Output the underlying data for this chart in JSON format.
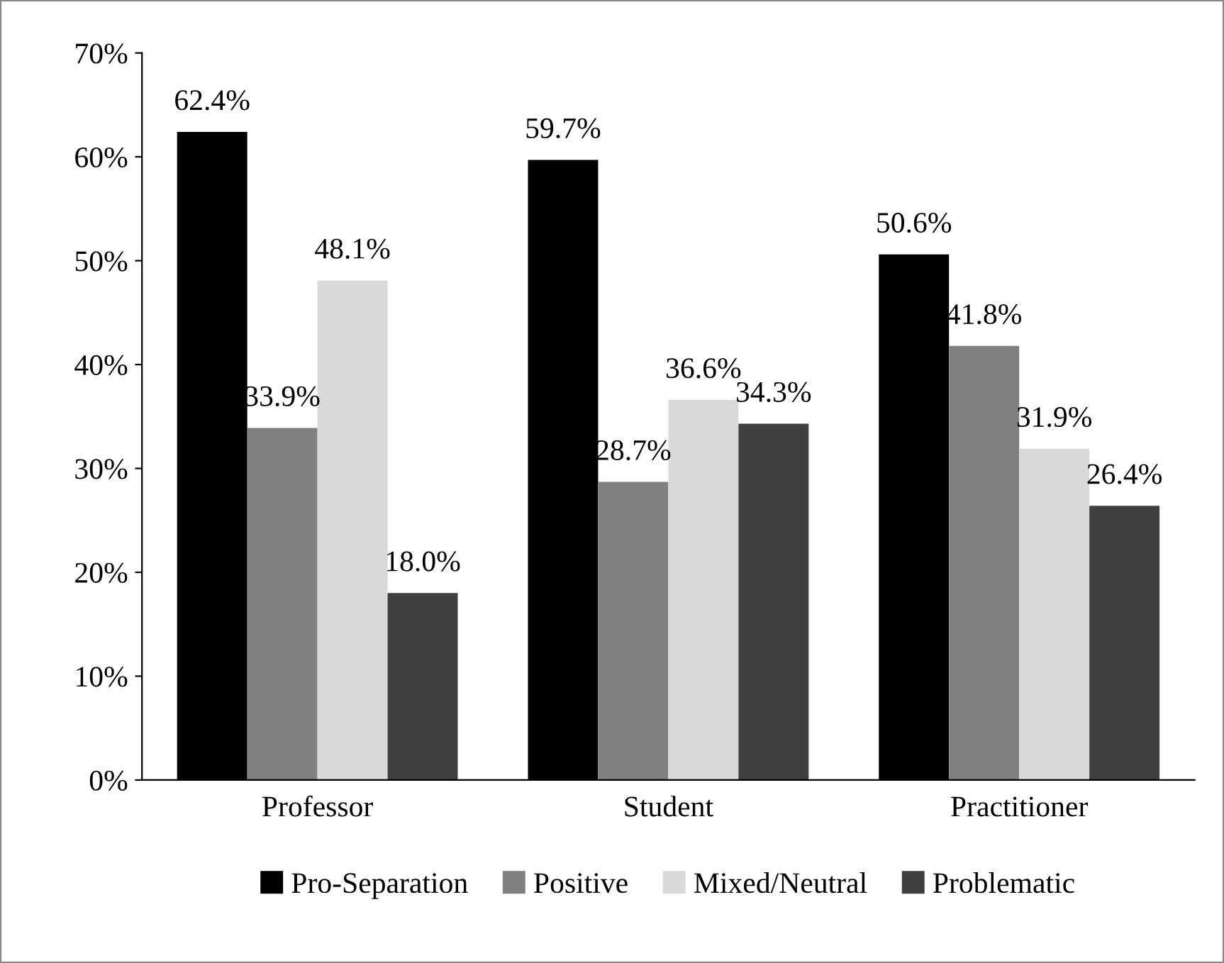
{
  "chart_data": {
    "type": "bar",
    "categories": [
      "Professor",
      "Student",
      "Practitioner"
    ],
    "series": [
      {
        "name": "Pro-Separation",
        "color": "#000000",
        "values": [
          62.4,
          59.7,
          50.6
        ],
        "value_labels": [
          "62.4%",
          "59.7%",
          "50.6%"
        ]
      },
      {
        "name": "Positive",
        "color": "#808080",
        "values": [
          33.9,
          28.7,
          41.8
        ],
        "value_labels": [
          "33.9%",
          "28.7%",
          "41.8%"
        ]
      },
      {
        "name": "Mixed/Neutral",
        "color": "#d9d9d9",
        "values": [
          48.1,
          36.6,
          31.9
        ],
        "value_labels": [
          "48.1%",
          "36.6%",
          "31.9%"
        ]
      },
      {
        "name": "Problematic",
        "color": "#404040",
        "values": [
          18.0,
          34.3,
          26.4
        ],
        "value_labels": [
          "18.0%",
          "34.3%",
          "26.4%"
        ]
      }
    ],
    "ylim": [
      0,
      70
    ],
    "yticks": [
      {
        "value": 0,
        "label": "0%"
      },
      {
        "value": 10,
        "label": "10%"
      },
      {
        "value": 20,
        "label": "20%"
      },
      {
        "value": 30,
        "label": "30%"
      },
      {
        "value": 40,
        "label": "40%"
      },
      {
        "value": 50,
        "label": "50%"
      },
      {
        "value": 60,
        "label": "60%"
      },
      {
        "value": 70,
        "label": "70%"
      }
    ],
    "grid": false,
    "legend": "bottom"
  }
}
